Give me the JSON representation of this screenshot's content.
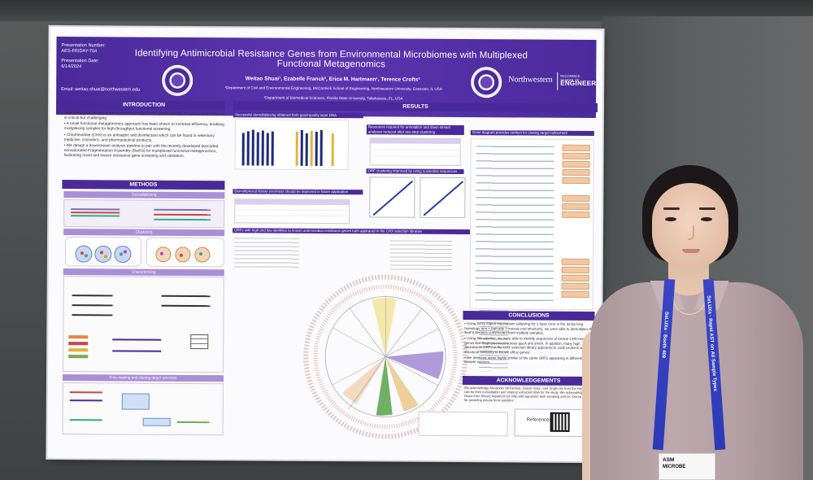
{
  "header": {
    "presentation_number_label": "Presentation Number:",
    "presentation_number": "AES-FRIDAY-704",
    "presentation_date_label": "Presentation Date:",
    "presentation_date": "6/14/2024",
    "email": "Email: weitao.shuai@northwestern.edu",
    "title": "Identifying Antimicrobial Resistance Genes from Environmental Microbiomes with Multiplexed Functional Metagenomics",
    "authors": "Weitao Shuai¹, Ezabelle Franck², Erica M. Hartmann¹, Terence Crofts²",
    "affiliation_1": "¹Department of Civil and Environmental Engineering, McCormick School of Engineering, Northwestern University, Evanston, IL USA",
    "affiliation_2": "²Department of Biomedical Sciences, Florida State University, Tallahassee, FL, USA",
    "logo_word": "Northwestern",
    "logo_sub": "McCORMICK SCHOOL OF",
    "logo_eng": "ENGINEERING"
  },
  "introduction": {
    "title": "INTRODUCTION",
    "bullets": [
      "• Identifying known and novel antimicrobial resistance genes (ARGs) in various environments is critical but challenging.",
      "• A novel functional metagenomics approach has been shown to increase efficiency, enabling multiplexing samples for high-throughput functional screening.",
      "• Chlorhexidine (CHX) is an antiseptic and disinfectant which can be found in veterinary medicine, cosmetics, and pharmaceutical products.",
      "• We design a downstream analysis pipeline to pair with the recently developed Barcoded nonsaturated Fragmentation Assembly (BarFa) for multiplexed functional metagenomics, facilitating novel and known resistance gene screening and validation."
    ]
  },
  "methods": {
    "title": "METHODS",
    "demultiplexing": "Demultiplexing",
    "clustering": "Clustering",
    "characterizing": "Characterizing",
    "free_making": "Free-making and cloning target selection"
  },
  "results": {
    "title": "RESULTS",
    "bar1": "Successful demultiplexing obtained from good-quality input DNA",
    "bar2": "Demultiplexed library evenness should be improved in future application",
    "bar3": "Resources required for annotation and down stream analyses reduced after two-step clustering",
    "bar4": "ORF clustering improved by using nucleotide sequences",
    "bar5": "Gene diagram provides context for cloning target refinement",
    "bar6": "ORFs with high and low identities to known antimicrobial resistance genes both appeared in the CHX selection libraries"
  },
  "conclusions": {
    "title": "CONCLUSIONS",
    "bullets": [
      "• Using fuzzy match mechanism (allowing for 1 base error in the 42-bp long homology arm + barcode + mosaic end structure), we were able to demultiplex the BarFa libraries constructed from multiple samples.",
      "• Using this pipeline, we were able to identify sequences of known CHX-resistance genes like Staphylococcal aureus qacA and smvA. In addition, many high abundance ORFs in the CHX selection library appeared to code proteins with structural similarity to known efflux genes.",
      "• We detected some highly similar or the same ORFs appearing in different sample sources."
    ]
  },
  "acknowledgements": {
    "title": "ACKNOWLEDGEMENTS",
    "text": "We acknowledge Alexander McFarland, Jiaxian Shen, and Jinglin Hu from the Hartmann Lab for their consultation and sharing extracted DNA for the study. We acknowledge Frank Olsen from Sheetz Aquarium for help with aquarium tank sampling and Dr. Emma Lavelly for providing mouse fecal samples."
  },
  "references_label": "References",
  "badge": {
    "line1": "ASM",
    "line2": "MICROBE"
  },
  "lanyard": {
    "left": "SeLUXa  ·  Booth 409",
    "right": "SeLUXa  ·  Rapid AST on All Sample Types"
  }
}
